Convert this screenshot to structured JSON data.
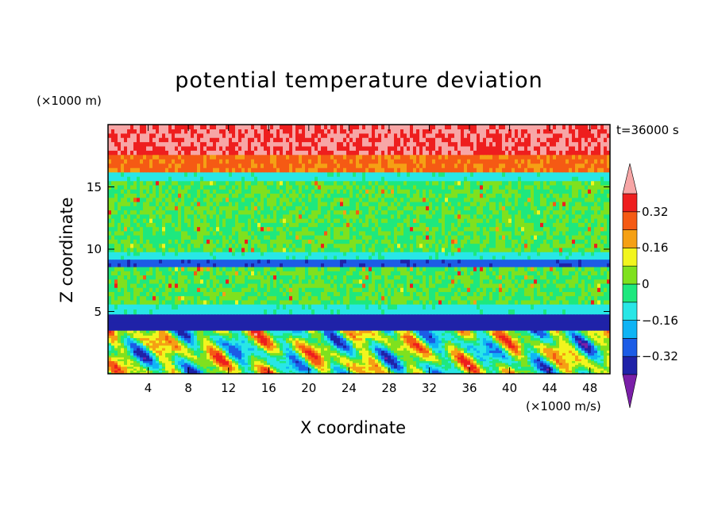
{
  "chart_data": {
    "type": "heatmap",
    "title": "potential temperature deviation",
    "xlabel": "X coordinate",
    "ylabel": "Z coordinate",
    "x_unit_note": "(×1000 m/s)",
    "y_unit_note": "(×1000 m)",
    "time_label": "t=36000 s",
    "xlim": [
      0,
      50
    ],
    "ylim": [
      0,
      20
    ],
    "x_ticks": [
      4,
      8,
      12,
      16,
      20,
      24,
      28,
      32,
      36,
      40,
      44,
      48
    ],
    "y_ticks": [
      5,
      10,
      15
    ],
    "x_tick_labels": [
      "4",
      "8",
      "12",
      "16",
      "20",
      "24",
      "28",
      "32",
      "36",
      "40",
      "44",
      "48"
    ],
    "y_tick_labels": [
      "5",
      "10",
      "15"
    ],
    "colorbar": {
      "levels": [
        -0.4,
        -0.32,
        -0.24,
        -0.16,
        -0.08,
        0,
        0.08,
        0.16,
        0.24,
        0.32,
        0.4
      ],
      "colors": [
        "#7a1fa8",
        "#1f22a8",
        "#1c5ce6",
        "#0fb4f5",
        "#28e6e6",
        "#1ee87e",
        "#7fe11e",
        "#f2f51e",
        "#f5a014",
        "#f55a14",
        "#ee1e1e",
        "#f7a6a6"
      ],
      "tick_values": [
        0.32,
        0.16,
        0,
        -0.16,
        -0.32
      ],
      "tick_labels": [
        "0.32",
        "0.16",
        "0",
        "−0.16",
        "−0.32"
      ]
    },
    "bands": [
      {
        "z": [
          0,
          1.5
        ],
        "pattern": "convective",
        "value_range": [
          -0.4,
          0.4
        ]
      },
      {
        "z": [
          1.5,
          3.5
        ],
        "pattern": "convective",
        "value_range": [
          -0.4,
          0.4
        ]
      },
      {
        "z": [
          3.5,
          4.8
        ],
        "pattern": "layer",
        "value": -0.35
      },
      {
        "z": [
          4.8,
          5.6
        ],
        "pattern": "layer",
        "value": -0.1
      },
      {
        "z": [
          5.6,
          8.6
        ],
        "pattern": "layer",
        "value": 0.0
      },
      {
        "z": [
          8.6,
          9.2
        ],
        "pattern": "layer",
        "value": -0.3
      },
      {
        "z": [
          9.2,
          9.8
        ],
        "pattern": "layer",
        "value": -0.1
      },
      {
        "z": [
          9.8,
          15.5
        ],
        "pattern": "layer",
        "value": 0.0
      },
      {
        "z": [
          15.5,
          16.2
        ],
        "pattern": "layer",
        "value": -0.1
      },
      {
        "z": [
          16.2,
          17.6
        ],
        "pattern": "layer",
        "value": 0.25
      },
      {
        "z": [
          17.6,
          20
        ],
        "pattern": "layer",
        "value": 0.4
      }
    ]
  }
}
